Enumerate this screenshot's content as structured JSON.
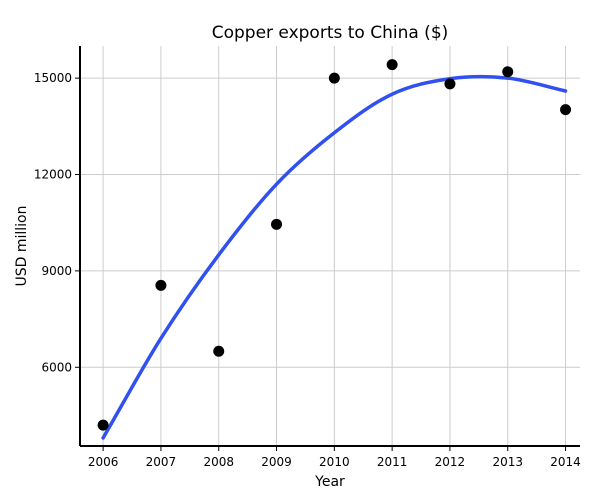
{
  "chart_data": {
    "type": "scatter",
    "title": "Copper exports to China ($)",
    "xlabel": "Year",
    "ylabel": "USD million",
    "xlim": [
      2005.6,
      2014.25
    ],
    "ylim": [
      3550,
      16000
    ],
    "x_ticks": [
      2006,
      2007,
      2008,
      2009,
      2010,
      2011,
      2012,
      2013,
      2014
    ],
    "x_tick_labels": [
      "2006",
      "2007",
      "2008",
      "2009",
      "2010",
      "2011",
      "2012",
      "2013",
      "2014"
    ],
    "y_ticks": [
      6000,
      9000,
      12000,
      15000
    ],
    "y_tick_labels": [
      "6000",
      "9000",
      "12000",
      "15000"
    ],
    "grid": true,
    "colors": {
      "points": "#000000",
      "fit_line": "#3050f0",
      "grid": "#cccccc"
    },
    "series": [
      {
        "kind": "points",
        "x": [
          2006,
          2007,
          2008,
          2009,
          2010,
          2011,
          2012,
          2013,
          2014
        ],
        "y": [
          4200,
          8550,
          6500,
          10450,
          15000,
          15420,
          14820,
          15200,
          14020
        ]
      },
      {
        "kind": "trend",
        "x": [
          2006,
          2007,
          2008,
          2009,
          2010,
          2011,
          2012,
          2013,
          2014
        ],
        "y": [
          3800,
          6900,
          9500,
          11700,
          13300,
          14500,
          14980,
          15000,
          14600
        ]
      }
    ]
  }
}
